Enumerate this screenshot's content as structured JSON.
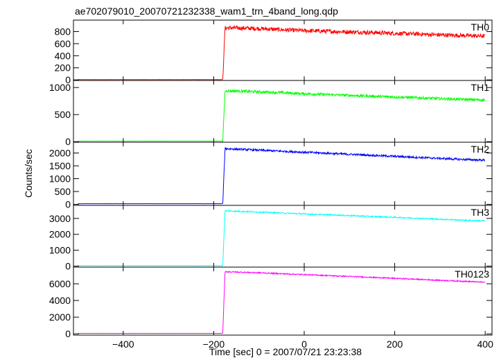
{
  "chart_data": {
    "type": "line",
    "title": "ae702079010_20070721232338_wam1_trn_4band_long.qdp",
    "xlabel": "Time [sec] 0 = 2007/07/21 23:23:38",
    "ylabel": "Counts/sec",
    "xlim": [
      -510,
      415
    ],
    "xticks": [
      -400,
      -200,
      0,
      200,
      400
    ],
    "trigger_time": -180,
    "panels": [
      {
        "name": "TH0",
        "color": "#ff0000",
        "ylim": [
          -10,
          990
        ],
        "yticks": [
          0,
          200,
          400,
          600,
          800
        ],
        "series": {
          "x": [
            -500,
            -180,
            -175,
            -150,
            -100,
            -50,
            0,
            50,
            100,
            150,
            200,
            250,
            300,
            350,
            400
          ],
          "y": [
            5,
            5,
            860,
            860,
            850,
            830,
            815,
            805,
            795,
            785,
            770,
            760,
            745,
            735,
            725
          ],
          "noise": 35
        }
      },
      {
        "name": "TH1",
        "color": "#00ff00",
        "ylim": [
          -10,
          1130
        ],
        "yticks": [
          0,
          500,
          1000
        ],
        "series": {
          "x": [
            -500,
            -180,
            -175,
            -150,
            -100,
            -50,
            0,
            50,
            100,
            150,
            200,
            250,
            300,
            350,
            400
          ],
          "y": [
            10,
            10,
            940,
            935,
            920,
            905,
            885,
            870,
            855,
            840,
            825,
            810,
            795,
            780,
            770
          ],
          "noise": 25
        }
      },
      {
        "name": "TH2",
        "color": "#0000ff",
        "ylim": [
          -40,
          2420
        ],
        "yticks": [
          0,
          500,
          1000,
          1500,
          2000
        ],
        "series": {
          "x": [
            -500,
            -180,
            -175,
            -150,
            -100,
            -50,
            0,
            50,
            100,
            150,
            200,
            250,
            300,
            350,
            400
          ],
          "y": [
            25,
            25,
            2170,
            2150,
            2110,
            2070,
            2030,
            1990,
            1950,
            1910,
            1870,
            1830,
            1790,
            1750,
            1720
          ],
          "noise": 40
        }
      },
      {
        "name": "TH3",
        "color": "#00ffff",
        "ylim": [
          -60,
          3820
        ],
        "yticks": [
          0,
          1000,
          2000,
          3000
        ],
        "series": {
          "x": [
            -500,
            -180,
            -175,
            -150,
            -100,
            -50,
            0,
            50,
            100,
            150,
            200,
            250,
            300,
            350,
            400
          ],
          "y": [
            30,
            30,
            3480,
            3450,
            3400,
            3340,
            3280,
            3230,
            3180,
            3120,
            3070,
            3010,
            2950,
            2890,
            2840
          ],
          "noise": 40
        }
      },
      {
        "name": "TH0123",
        "color": "#ff00ff",
        "ylim": [
          -150,
          8000
        ],
        "yticks": [
          0,
          2000,
          4000,
          6000
        ],
        "series": {
          "x": [
            -500,
            -180,
            -175,
            -150,
            -100,
            -50,
            0,
            50,
            100,
            150,
            200,
            250,
            300,
            350,
            400
          ],
          "y": [
            60,
            60,
            7450,
            7410,
            7320,
            7210,
            7100,
            6990,
            6880,
            6770,
            6650,
            6540,
            6420,
            6310,
            6180
          ],
          "noise": 70
        }
      }
    ]
  }
}
